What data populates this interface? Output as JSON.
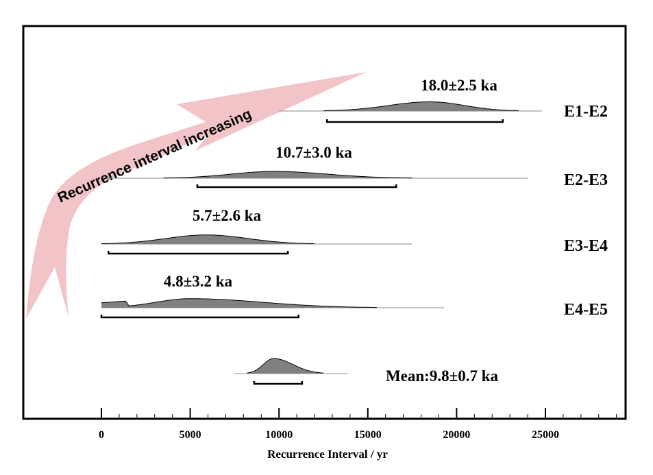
{
  "chart_data": {
    "type": "area",
    "title": "",
    "xlabel": "Recurrence Interval / yr",
    "ylabel": "",
    "xlim": [
      -4500,
      29500
    ],
    "xticks": [
      0,
      5000,
      10000,
      15000,
      20000,
      25000
    ],
    "xtick_labels": [
      "0",
      "5000",
      "10000",
      "15000",
      "20000",
      "25000"
    ],
    "minor_tick_step": 1000,
    "grid": false,
    "legend": "none",
    "series": [
      {
        "name": "E1-E2",
        "label": "18.0±2.5 ka",
        "peak": 18500,
        "support": [
          10000,
          24800
        ],
        "curve_extent": [
          12500,
          23500
        ],
        "range_bar": [
          12700,
          22600
        ],
        "relative_height": 0.75
      },
      {
        "name": "E2-E3",
        "label": "10.7±3.0 ka",
        "peak": 9700,
        "support": [
          300,
          24000
        ],
        "curve_extent": [
          3500,
          17500
        ],
        "range_bar": [
          5400,
          16600
        ],
        "relative_height": 0.55
      },
      {
        "name": "E3-E4",
        "label": "5.7±2.6 ka",
        "peak": 5900,
        "support": [
          0,
          17500
        ],
        "curve_extent": [
          0,
          12000
        ],
        "range_bar": [
          400,
          10500
        ],
        "relative_height": 0.7
      },
      {
        "name": "E4-E5",
        "label": "4.8±3.2 ka",
        "peak": 5000,
        "support": [
          0,
          19300
        ],
        "curve_extent": [
          0,
          15500
        ],
        "range_bar": [
          0,
          11100
        ],
        "relative_height": 0.7
      },
      {
        "name": "Mean",
        "label": "Mean:9.8±0.7 ka",
        "peak": 9700,
        "support": [
          7500,
          13900
        ],
        "curve_extent": [
          8200,
          12500
        ],
        "range_bar": [
          8600,
          11300
        ],
        "relative_height": 1.0
      }
    ],
    "annotation": {
      "text": "Recurrence interval increasing",
      "color": "#f2c4c8"
    },
    "colors": {
      "fill": "#808080",
      "outline": "#000000",
      "baseline": "#888888",
      "arrow": "#f2c4c8"
    }
  }
}
